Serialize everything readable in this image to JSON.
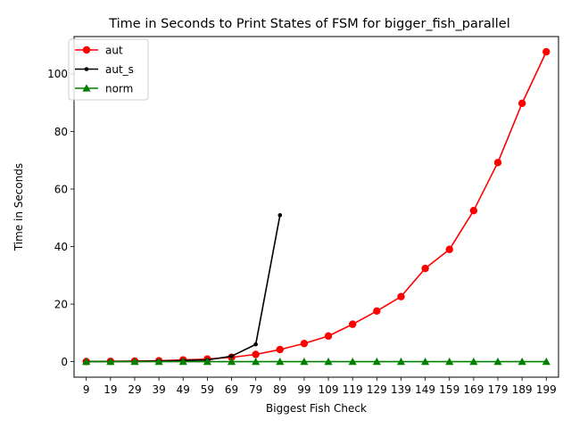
{
  "chart_data": {
    "type": "line",
    "title": "Time in Seconds to Print States of FSM for bigger_fish_parallel",
    "xlabel": "Biggest Fish Check",
    "ylabel": "Time in Seconds",
    "x": [
      9,
      19,
      29,
      39,
      49,
      59,
      69,
      79,
      89,
      99,
      109,
      119,
      129,
      139,
      149,
      159,
      169,
      179,
      189,
      199
    ],
    "x_tick_labels": [
      "9",
      "19",
      "29",
      "39",
      "49",
      "59",
      "69",
      "79",
      "89",
      "99",
      "109",
      "119",
      "129",
      "139",
      "149",
      "159",
      "169",
      "179",
      "189",
      "199"
    ],
    "y_ticks": [
      0,
      20,
      40,
      60,
      80,
      100
    ],
    "y_tick_labels": [
      "0",
      "20",
      "40",
      "60",
      "80",
      "100"
    ],
    "xlim": [
      3.95,
      204.05
    ],
    "ylim": [
      -5.4,
      113.0
    ],
    "grid": false,
    "legend_position": "top-left",
    "series": [
      {
        "name": "aut",
        "color": "#ff0000",
        "marker": "circle",
        "x": [
          9,
          19,
          29,
          39,
          49,
          59,
          69,
          79,
          89,
          99,
          109,
          119,
          129,
          139,
          149,
          159,
          169,
          179,
          189,
          199
        ],
        "values": [
          0.05,
          0.1,
          0.2,
          0.3,
          0.6,
          0.9,
          1.5,
          2.5,
          4.2,
          6.3,
          8.9,
          13.0,
          17.6,
          22.6,
          32.4,
          39.0,
          52.5,
          69.2,
          89.8,
          107.7
        ]
      },
      {
        "name": "aut_s",
        "color": "#000000",
        "marker": "point",
        "x": [
          9,
          19,
          29,
          39,
          49,
          59,
          69,
          79,
          89
        ],
        "values": [
          0.05,
          0.05,
          0.1,
          0.2,
          0.4,
          0.6,
          1.9,
          6.0,
          50.9
        ]
      },
      {
        "name": "norm",
        "color": "#008000",
        "marker": "triangle",
        "x": [
          9,
          19,
          29,
          39,
          49,
          59,
          69,
          79,
          89,
          99,
          109,
          119,
          129,
          139,
          149,
          159,
          169,
          179,
          189,
          199
        ],
        "values": [
          0,
          0,
          0,
          0,
          0,
          0,
          0,
          0,
          0,
          0,
          0,
          0,
          0,
          0,
          0,
          0,
          0,
          0,
          0,
          0
        ]
      }
    ]
  }
}
